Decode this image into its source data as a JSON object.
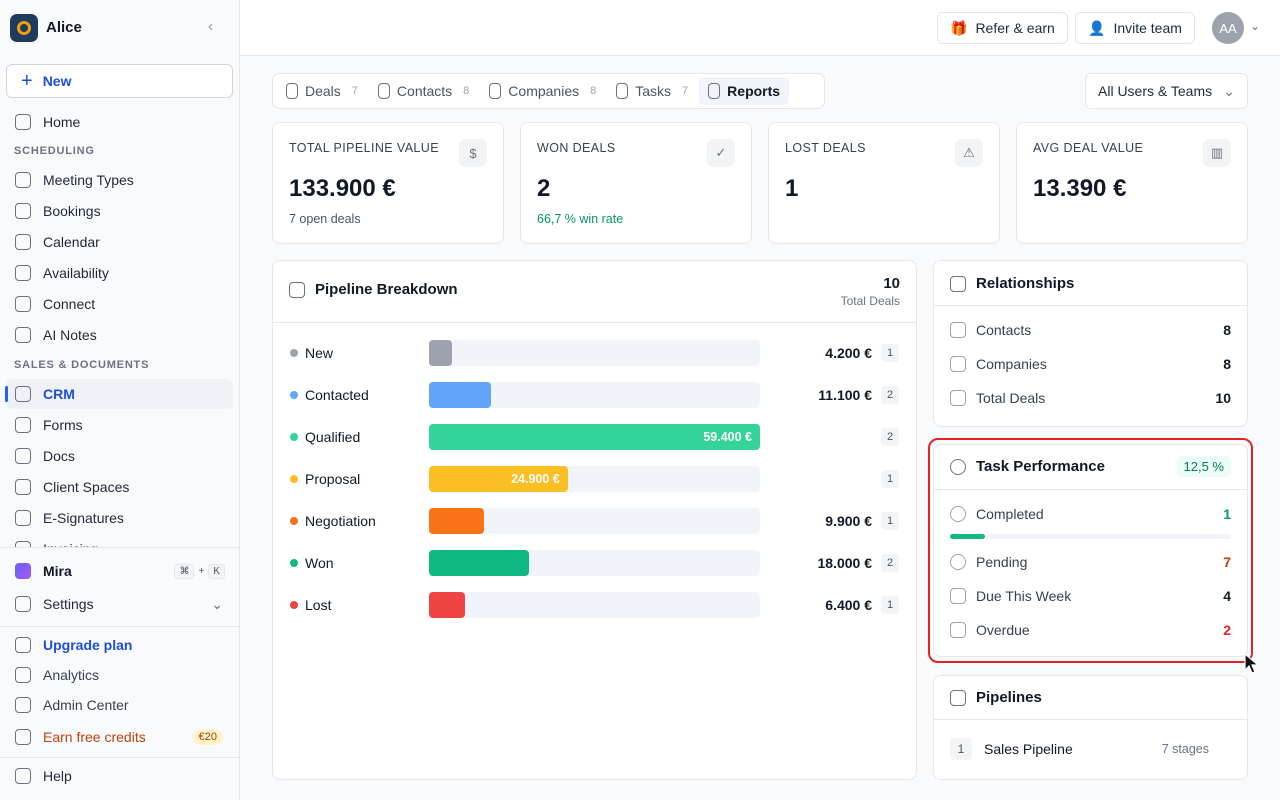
{
  "sidebar": {
    "workspace": "Alice",
    "new_button": "New",
    "home": "Home",
    "sections": [
      {
        "title": "SCHEDULING",
        "items": [
          "Meeting Types",
          "Bookings",
          "Calendar",
          "Availability",
          "Connect",
          "AI Notes"
        ]
      },
      {
        "title": "SALES & DOCUMENTS",
        "items": [
          "CRM",
          "Forms",
          "Docs",
          "Client Spaces",
          "E-Signatures",
          "Invoicing"
        ],
        "active_index": 0
      }
    ],
    "assistant": {
      "label": "Mira",
      "shortcut": [
        "⌘",
        "+",
        "K"
      ]
    },
    "settings": "Settings",
    "footer": [
      {
        "label": "Upgrade plan",
        "color": "#1d4ed8"
      },
      {
        "label": "Analytics",
        "color": "#374151"
      },
      {
        "label": "Admin Center",
        "color": "#374151"
      },
      {
        "label": "Earn free credits",
        "color": "#c2410c",
        "badge": "€20"
      }
    ],
    "help": "Help"
  },
  "header": {
    "refer": "Refer & earn",
    "invite": "Invite team",
    "avatar": "AA"
  },
  "tabs": [
    {
      "label": "Deals",
      "count": 7
    },
    {
      "label": "Contacts",
      "count": 8
    },
    {
      "label": "Companies",
      "count": 8
    },
    {
      "label": "Tasks",
      "count": 7
    },
    {
      "label": "Reports"
    }
  ],
  "active_tab": 4,
  "filter": "All Users & Teams",
  "stats": [
    {
      "title": "TOTAL PIPELINE VALUE",
      "value": "133.900 €",
      "sub": "7 open deals",
      "sub_color": "#4b5563",
      "icon": "$"
    },
    {
      "title": "WON DEALS",
      "value": "2",
      "sub": "66,7 % win rate",
      "sub_color": "#059669",
      "icon": "✓"
    },
    {
      "title": "LOST DEALS",
      "value": "1",
      "icon": "⚠"
    },
    {
      "title": "AVG DEAL VALUE",
      "value": "13.390 €",
      "icon": "▥"
    }
  ],
  "pipeline": {
    "title": "Pipeline Breakdown",
    "total": 10,
    "total_label": "Total Deals",
    "stages": [
      {
        "name": "New",
        "value": 4200,
        "label": "4.200 €",
        "count": 1,
        "color": "#9ca3af"
      },
      {
        "name": "Contacted",
        "value": 11100,
        "label": "11.100 €",
        "count": 2,
        "color": "#60a5fa"
      },
      {
        "name": "Qualified",
        "value": 59400,
        "label": "59.400 €",
        "count": 2,
        "color": "#34d399"
      },
      {
        "name": "Proposal",
        "value": 24900,
        "label": "24.900 €",
        "count": 1,
        "color": "#fbbf24"
      },
      {
        "name": "Negotiation",
        "value": 9900,
        "label": "9.900 €",
        "count": 1,
        "color": "#f97316"
      },
      {
        "name": "Won",
        "value": 18000,
        "label": "18.000 €",
        "count": 2,
        "color": "#10b981"
      },
      {
        "name": "Lost",
        "value": 6400,
        "label": "6.400 €",
        "count": 1,
        "color": "#ef4444"
      }
    ]
  },
  "relationships": {
    "title": "Relationships",
    "rows": [
      {
        "label": "Contacts",
        "value": 8
      },
      {
        "label": "Companies",
        "value": 8
      },
      {
        "label": "Total Deals",
        "value": 10
      }
    ]
  },
  "tasks": {
    "title": "Task Performance",
    "percent": 12.5,
    "percent_label": "12,5 %",
    "rows": [
      {
        "label": "Completed",
        "value": 1,
        "color": "#059669"
      },
      {
        "label": "Pending",
        "value": 7,
        "color": "#c2410c"
      },
      {
        "label": "Due This Week",
        "value": 4,
        "color": "#111827"
      },
      {
        "label": "Overdue",
        "value": 2,
        "color": "#dc2626"
      }
    ]
  },
  "pipelines": {
    "title": "Pipelines",
    "items": [
      {
        "index": 1,
        "name": "Sales Pipeline",
        "stages": "7 stages"
      }
    ]
  }
}
